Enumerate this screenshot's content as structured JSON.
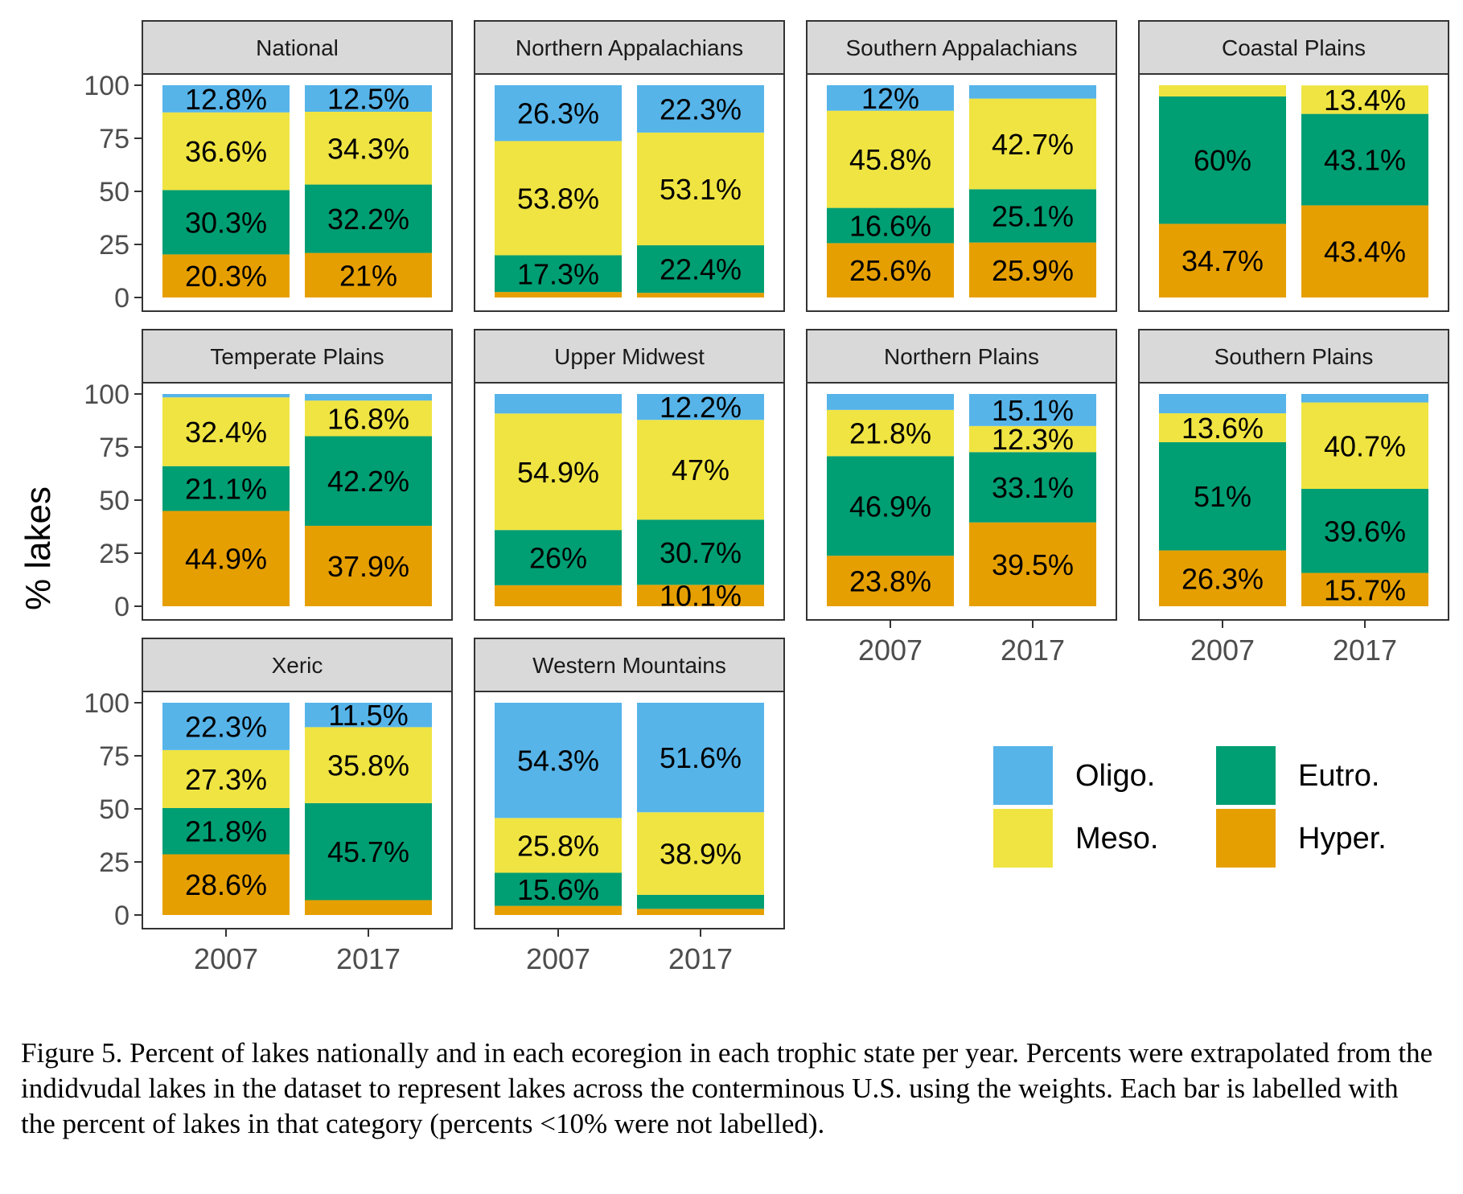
{
  "chart_data": {
    "type": "bar",
    "stacked": true,
    "ylabel": "% lakes",
    "xlabel": "",
    "ylim": [
      0,
      100
    ],
    "yticks": [
      0,
      25,
      50,
      75,
      100
    ],
    "categories": [
      "2007",
      "2017"
    ],
    "legend": {
      "placement": "bottom-right",
      "entries": [
        {
          "key": "oligo",
          "label": "Oligo."
        },
        {
          "key": "eutro",
          "label": "Eutro."
        },
        {
          "key": "meso",
          "label": "Meso."
        },
        {
          "key": "hyper",
          "label": "Hyper."
        }
      ]
    },
    "colors": {
      "oligo": "#56B4E9",
      "meso": "#F0E442",
      "eutro": "#009E73",
      "hyper": "#E69F00"
    },
    "stack_order": [
      "hyper",
      "eutro",
      "meso",
      "oligo"
    ],
    "panels": [
      {
        "title": "National",
        "bars": [
          {
            "year": "2007",
            "hyper": 20.3,
            "eutro": 30.3,
            "meso": 36.6,
            "oligo": 12.8
          },
          {
            "year": "2017",
            "hyper": 21.0,
            "eutro": 32.2,
            "meso": 34.3,
            "oligo": 12.5
          }
        ]
      },
      {
        "title": "Northern Appalachians",
        "bars": [
          {
            "year": "2007",
            "hyper": 2.6,
            "eutro": 17.3,
            "meso": 53.8,
            "oligo": 26.3
          },
          {
            "year": "2017",
            "hyper": 2.2,
            "eutro": 22.4,
            "meso": 53.1,
            "oligo": 22.3
          }
        ]
      },
      {
        "title": "Southern Appalachians",
        "bars": [
          {
            "year": "2007",
            "hyper": 25.6,
            "eutro": 16.6,
            "meso": 45.8,
            "oligo": 12.0
          },
          {
            "year": "2017",
            "hyper": 25.9,
            "eutro": 25.1,
            "meso": 42.7,
            "oligo": 6.3
          }
        ]
      },
      {
        "title": "Coastal Plains",
        "bars": [
          {
            "year": "2007",
            "hyper": 34.7,
            "eutro": 60.0,
            "meso": 5.3,
            "oligo": 0
          },
          {
            "year": "2017",
            "hyper": 43.4,
            "eutro": 43.1,
            "meso": 13.4,
            "oligo": 0
          }
        ]
      },
      {
        "title": "Temperate Plains",
        "bars": [
          {
            "year": "2007",
            "hyper": 44.9,
            "eutro": 21.1,
            "meso": 32.4,
            "oligo": 1.6
          },
          {
            "year": "2017",
            "hyper": 37.9,
            "eutro": 42.2,
            "meso": 16.8,
            "oligo": 3.1
          }
        ]
      },
      {
        "title": "Upper Midwest",
        "bars": [
          {
            "year": "2007",
            "hyper": 9.9,
            "eutro": 26.0,
            "meso": 54.9,
            "oligo": 9.2
          },
          {
            "year": "2017",
            "hyper": 10.1,
            "eutro": 30.7,
            "meso": 47.0,
            "oligo": 12.2
          }
        ]
      },
      {
        "title": "Northern Plains",
        "bars": [
          {
            "year": "2007",
            "hyper": 23.8,
            "eutro": 46.9,
            "meso": 21.8,
            "oligo": 7.5
          },
          {
            "year": "2017",
            "hyper": 39.5,
            "eutro": 33.1,
            "meso": 12.3,
            "oligo": 15.1
          }
        ]
      },
      {
        "title": "Southern Plains",
        "bars": [
          {
            "year": "2007",
            "hyper": 26.3,
            "eutro": 51.0,
            "meso": 13.6,
            "oligo": 9.1
          },
          {
            "year": "2017",
            "hyper": 15.7,
            "eutro": 39.6,
            "meso": 40.7,
            "oligo": 4.0
          }
        ]
      },
      {
        "title": "Xeric",
        "bars": [
          {
            "year": "2007",
            "hyper": 28.6,
            "eutro": 21.8,
            "meso": 27.3,
            "oligo": 22.3
          },
          {
            "year": "2017",
            "hyper": 7.0,
            "eutro": 45.7,
            "meso": 35.8,
            "oligo": 11.5
          }
        ]
      },
      {
        "title": "Western Mountains",
        "bars": [
          {
            "year": "2007",
            "hyper": 4.3,
            "eutro": 15.6,
            "meso": 25.8,
            "oligo": 54.3
          },
          {
            "year": "2017",
            "hyper": 2.9,
            "eutro": 6.6,
            "meso": 38.9,
            "oligo": 51.6
          }
        ]
      }
    ]
  },
  "caption": "Figure 5. Percent of lakes nationally and in each ecoregion in each trophic state per year. Percents were extrapolated from the indidvudal lakes in the dataset to represent lakes across the conterminous U.S. using the weights. Each bar is labelled with the percent of lakes in that category (percents <10% were not labelled)."
}
